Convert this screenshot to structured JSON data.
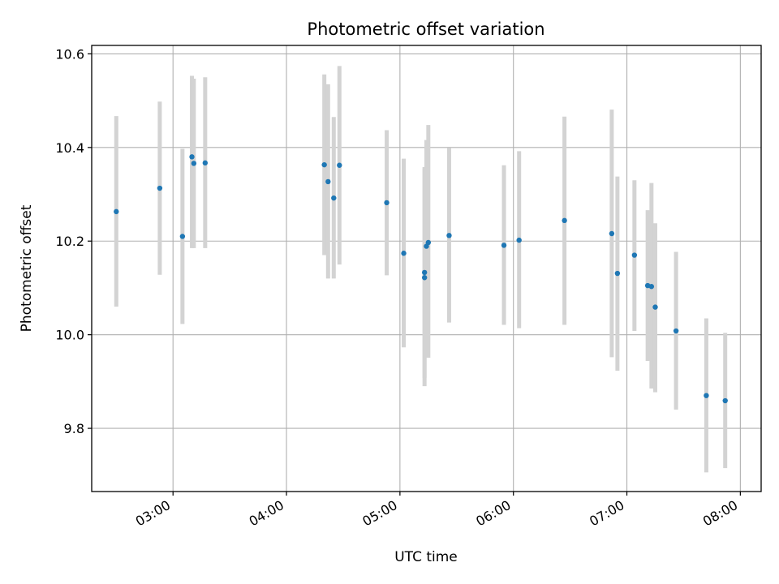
{
  "chart_data": {
    "type": "scatter",
    "title": "Photometric offset variation",
    "xlabel": "UTC time",
    "ylabel": "Photometric offset",
    "grid": true,
    "legend": "none",
    "colors": {
      "point": "#1f77b4",
      "errorbar": "#d3d3d3",
      "grid": "#b0b0b0",
      "axis": "#000000"
    },
    "xlim": [
      "02:17",
      "08:11"
    ],
    "ylim": [
      9.665,
      10.618
    ],
    "x_ticks": [
      "03:00",
      "04:00",
      "05:00",
      "06:00",
      "07:00",
      "08:00"
    ],
    "y_ticks": [
      "9.8",
      "10.0",
      "10.2",
      "10.4",
      "10.6"
    ],
    "points": [
      {
        "x": "02:30",
        "y": 10.263,
        "err_low": 10.06,
        "err_high": 10.467
      },
      {
        "x": "02:53",
        "y": 10.313,
        "err_low": 10.128,
        "err_high": 10.498
      },
      {
        "x": "03:05",
        "y": 10.21,
        "err_low": 10.023,
        "err_high": 10.397
      },
      {
        "x": "03:10",
        "y": 10.38,
        "err_low": 10.185,
        "err_high": 10.553
      },
      {
        "x": "03:11",
        "y": 10.366,
        "err_low": 10.185,
        "err_high": 10.547
      },
      {
        "x": "03:17",
        "y": 10.367,
        "err_low": 10.185,
        "err_high": 10.55
      },
      {
        "x": "04:20",
        "y": 10.363,
        "err_low": 10.17,
        "err_high": 10.556
      },
      {
        "x": "04:22",
        "y": 10.327,
        "err_low": 10.12,
        "err_high": 10.535
      },
      {
        "x": "04:25",
        "y": 10.292,
        "err_low": 10.12,
        "err_high": 10.465
      },
      {
        "x": "04:28",
        "y": 10.362,
        "err_low": 10.15,
        "err_high": 10.574
      },
      {
        "x": "04:53",
        "y": 10.282,
        "err_low": 10.127,
        "err_high": 10.437
      },
      {
        "x": "05:02",
        "y": 10.174,
        "err_low": 9.973,
        "err_high": 10.376
      },
      {
        "x": "05:13",
        "y": 10.122,
        "err_low": 9.89,
        "err_high": 10.355
      },
      {
        "x": "05:13",
        "y": 10.133,
        "err_low": 9.908,
        "err_high": 10.358
      },
      {
        "x": "05:14",
        "y": 10.189,
        "err_low": 9.961,
        "err_high": 10.416
      },
      {
        "x": "05:15",
        "y": 10.197,
        "err_low": 9.951,
        "err_high": 10.448
      },
      {
        "x": "05:26",
        "y": 10.212,
        "err_low": 10.026,
        "err_high": 10.399
      },
      {
        "x": "05:55",
        "y": 10.191,
        "err_low": 10.021,
        "err_high": 10.362
      },
      {
        "x": "06:03",
        "y": 10.202,
        "err_low": 10.014,
        "err_high": 10.392
      },
      {
        "x": "06:27",
        "y": 10.244,
        "err_low": 10.021,
        "err_high": 10.466
      },
      {
        "x": "06:52",
        "y": 10.216,
        "err_low": 9.952,
        "err_high": 10.481
      },
      {
        "x": "06:55",
        "y": 10.131,
        "err_low": 9.923,
        "err_high": 10.338
      },
      {
        "x": "07:04",
        "y": 10.17,
        "err_low": 10.008,
        "err_high": 10.33
      },
      {
        "x": "07:11",
        "y": 10.105,
        "err_low": 9.944,
        "err_high": 10.266
      },
      {
        "x": "07:13",
        "y": 10.103,
        "err_low": 9.885,
        "err_high": 10.324
      },
      {
        "x": "07:15",
        "y": 10.059,
        "err_low": 9.877,
        "err_high": 10.238
      },
      {
        "x": "07:26",
        "y": 10.008,
        "err_low": 9.84,
        "err_high": 10.177
      },
      {
        "x": "07:42",
        "y": 9.87,
        "err_low": 9.706,
        "err_high": 10.035
      },
      {
        "x": "07:52",
        "y": 9.859,
        "err_low": 9.715,
        "err_high": 10.004
      }
    ]
  }
}
